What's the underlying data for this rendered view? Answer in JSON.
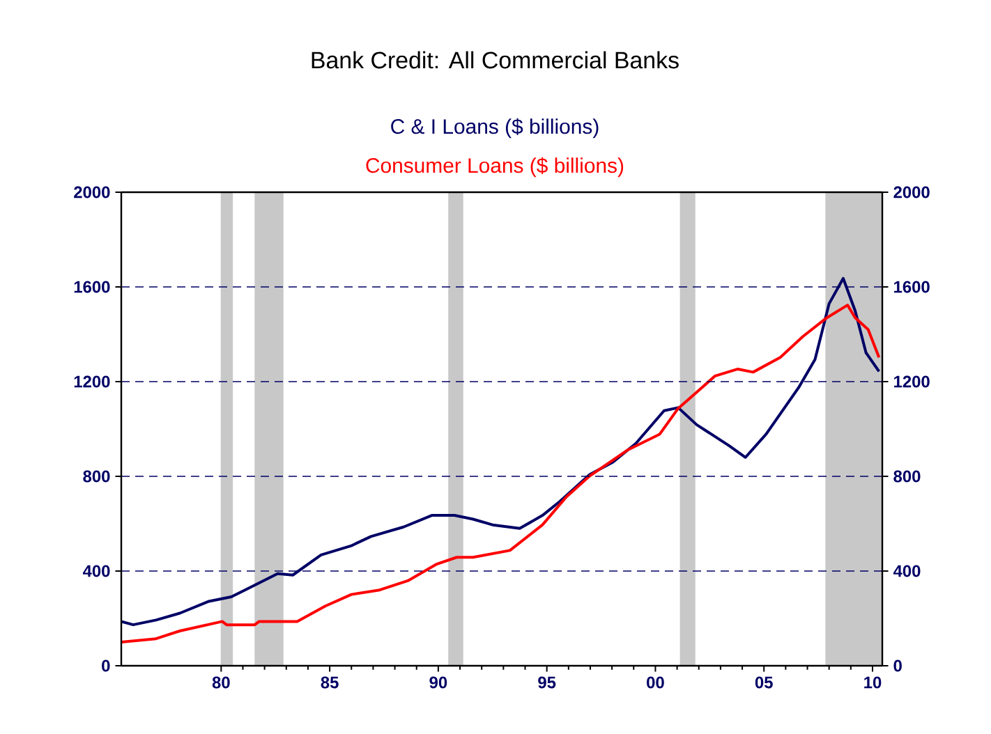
{
  "chart_data": {
    "type": "line",
    "title": "Bank Credit: All Commercial Banks",
    "xlim": [
      1975.4,
      2010.45
    ],
    "xticks": [
      {
        "value": 1980,
        "label": "80"
      },
      {
        "value": 1985,
        "label": "85"
      },
      {
        "value": 1990,
        "label": "90"
      },
      {
        "value": 1995,
        "label": "95"
      },
      {
        "value": 2000,
        "label": "00"
      },
      {
        "value": 2005,
        "label": "05"
      },
      {
        "value": 2010,
        "label": "10"
      }
    ],
    "ylim": [
      0,
      2000
    ],
    "yticks": [
      0,
      400,
      800,
      1200,
      1600,
      2000
    ],
    "y2lim": [
      0,
      2000
    ],
    "y2ticks": [
      0,
      400,
      800,
      1200,
      1600,
      2000
    ],
    "grid": "y",
    "legend": "top",
    "line_style": "solid",
    "bands": [
      {
        "axis": "x",
        "from": 1979.98,
        "to": 1980.54,
        "color": "#c8c8c8"
      },
      {
        "axis": "x",
        "from": 1981.54,
        "to": 1982.87,
        "color": "#c8c8c8"
      },
      {
        "axis": "x",
        "from": 1990.46,
        "to": 1991.15,
        "color": "#c8c8c8"
      },
      {
        "axis": "x",
        "from": 2001.13,
        "to": 2001.84,
        "color": "#c8c8c8"
      },
      {
        "axis": "x",
        "from": 2007.83,
        "to": 2010.45,
        "color": "#c8c8c8"
      }
    ],
    "series": [
      {
        "name": "C & I Loans ($ billions)",
        "color": "#000066",
        "x": [
          1975.4,
          1975.95,
          1977.0,
          1978.1,
          1979.4,
          1980.47,
          1981.1,
          1982.6,
          1983.3,
          1984.6,
          1986.0,
          1986.9,
          1988.4,
          1989.7,
          1990.75,
          1991.6,
          1992.5,
          1993.75,
          1994.8,
          1995.6,
          1996.97,
          1998.05,
          1999.1,
          2000.4,
          2001.05,
          2001.9,
          2003.4,
          2004.15,
          2005.1,
          2006.6,
          2007.35,
          2008.0,
          2008.65,
          2009.2,
          2009.7,
          2010.3
        ],
        "values": [
          187,
          173,
          193,
          222,
          271,
          291,
          320,
          389,
          383,
          468,
          507,
          546,
          586,
          635,
          635,
          619,
          595,
          580,
          635,
          694,
          807,
          860,
          939,
          1077,
          1090,
          1018,
          929,
          880,
          978,
          1175,
          1293,
          1529,
          1636,
          1499,
          1322,
          1243
        ]
      },
      {
        "name": "Consumer Loans ($ billions)",
        "color": "#ff0000",
        "x": [
          1975.4,
          1977.0,
          1978.1,
          1980.05,
          1980.25,
          1981.55,
          1981.75,
          1983.5,
          1984.8,
          1986.0,
          1987.3,
          1988.6,
          1989.9,
          1990.85,
          1991.6,
          1993.3,
          1994.8,
          1995.9,
          1996.97,
          1998.7,
          2000.2,
          2001.05,
          2001.9,
          2002.75,
          2003.8,
          2004.5,
          2005.75,
          2006.8,
          2007.9,
          2008.85,
          2009.2,
          2009.8,
          2010.3
        ],
        "values": [
          100,
          114,
          147,
          187,
          173,
          173,
          187,
          187,
          252,
          301,
          320,
          359,
          428,
          458,
          458,
          487,
          595,
          713,
          801,
          910,
          978,
          1087,
          1155,
          1224,
          1253,
          1240,
          1302,
          1391,
          1470,
          1523,
          1470,
          1420,
          1302
        ]
      }
    ]
  }
}
